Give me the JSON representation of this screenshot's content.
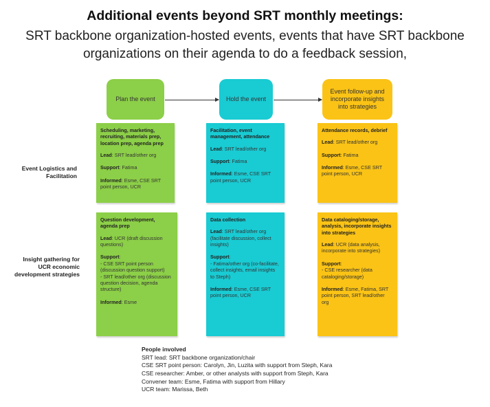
{
  "title": {
    "heading": "Additional events beyond SRT monthly meetings:",
    "line1": "SRT backbone organization-hosted events, events that have SRT backbone",
    "line2": "organizations on their agenda to do a feedback session,"
  },
  "stages": [
    {
      "label": "Plan the event",
      "color": "#8ccf48"
    },
    {
      "label": "Hold the event",
      "color": "#19cbd3"
    },
    {
      "label": "Event follow-up and incorporate insights into strategies",
      "color": "#fac316"
    }
  ],
  "rows": [
    {
      "label": "Event Logistics and Facilitation"
    },
    {
      "label": "Insight gathering for UCR economic development strategies"
    }
  ],
  "cells": {
    "logistics_plan": {
      "header": "Scheduling, marketing, recruiting, materials prep, location prep, agenda prep",
      "lead_label": "Lead",
      "lead": ": SRT lead/other org",
      "support_label": "Support",
      "support": ": Fatima",
      "informed_label": "Informed",
      "informed": ": Esme, CSE SRT point person, UCR"
    },
    "logistics_hold": {
      "header": "Facilitation, event management, attendance",
      "lead_label": "Lead",
      "lead": ": SRT lead/other org",
      "support_label": "Support",
      "support": ": Fatima",
      "informed_label": "Informed",
      "informed": ": Esme, CSE SRT point person, UCR"
    },
    "logistics_follow": {
      "header": "Attendance records, debrief",
      "lead_label": "Lead",
      "lead": ": SRT lead/other org",
      "support_label": "Support",
      "support": ": Fatima",
      "informed_label": "Informed",
      "informed": ": Esme, CSE SRT point person, UCR"
    },
    "insight_plan": {
      "header": "Question development, agenda prep",
      "lead_label": "Lead",
      "lead": ": UCR (draft discussion questions)",
      "support_label": "Support",
      "support_line1": "- CSE SRT point person (discussion question support)",
      "support_line2": "- SRT lead/other org (discussion question decision, agenda structure)",
      "informed_label": "Informed",
      "informed": ": Esme"
    },
    "insight_hold": {
      "header": "Data collection",
      "lead_label": "Lead",
      "lead": ": SRT lead/other org (facilitate discussion, collect insights)",
      "support_label": "Support",
      "support_line1": "- Fatima/other org (co-facilitate, collect insights, email insights to Steph)",
      "informed_label": "Informed",
      "informed": ": Esme, CSE SRT point person, UCR"
    },
    "insight_follow": {
      "header": "Data cataloging/storage, analysis, incorporate insights into strategies",
      "lead_label": "Lead",
      "lead": ": UCR  (data analysis, incorporate into strategies)",
      "support_label": "Support",
      "support_line1": "- CSE researcher (data cataloging/storage)",
      "informed_label": "Informed",
      "informed": ": Esme, Fatima, SRT point person, SRT lead/other org"
    }
  },
  "people": {
    "heading": "People involved",
    "lines": [
      "SRT lead: SRT backbone organization/chair",
      "CSE SRT point person: Carolyn, Jin, Luzita with support from Steph, Kara",
      "CSE researcher: Amber, or other analysts with support from Steph, Kara",
      "Convener team: Esme, Fatima with support from Hillary",
      "UCR team: Marissa, Beth"
    ]
  }
}
